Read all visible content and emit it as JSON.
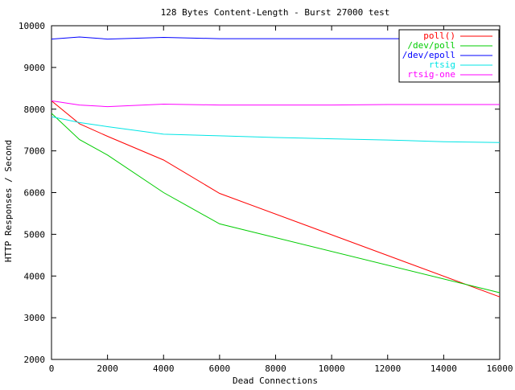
{
  "chart_data": {
    "type": "line",
    "title": "128 Bytes Content-Length - Burst 27000 test",
    "xlabel": "Dead Connections",
    "ylabel": "HTTP Responses / Second",
    "xlim": [
      0,
      16000
    ],
    "ylim": [
      2000,
      10000
    ],
    "x_ticks": [
      0,
      2000,
      4000,
      6000,
      8000,
      10000,
      12000,
      14000,
      16000
    ],
    "y_ticks": [
      2000,
      3000,
      4000,
      5000,
      6000,
      7000,
      8000,
      9000,
      10000
    ],
    "grid": false,
    "legend_position": "top-right",
    "series": [
      {
        "name": "poll()",
        "color": "#ff0000",
        "points": [
          [
            0,
            8200
          ],
          [
            1000,
            7650
          ],
          [
            2000,
            7350
          ],
          [
            4000,
            6780
          ],
          [
            6000,
            5980
          ],
          [
            16000,
            3500
          ]
        ]
      },
      {
        "name": "/dev/poll",
        "color": "#00cc00",
        "points": [
          [
            0,
            7900
          ],
          [
            1000,
            7270
          ],
          [
            2000,
            6900
          ],
          [
            4000,
            6000
          ],
          [
            6000,
            5250
          ],
          [
            16000,
            3600
          ]
        ]
      },
      {
        "name": "/dev/epoll",
        "color": "#0000ff",
        "points": [
          [
            0,
            9680
          ],
          [
            1000,
            9730
          ],
          [
            2000,
            9680
          ],
          [
            4000,
            9720
          ],
          [
            6000,
            9690
          ],
          [
            8000,
            9690
          ],
          [
            10000,
            9690
          ],
          [
            12000,
            9690
          ],
          [
            14000,
            9690
          ],
          [
            16000,
            9690
          ]
        ]
      },
      {
        "name": "rtsig",
        "color": "#00e5e5",
        "points": [
          [
            0,
            7820
          ],
          [
            1000,
            7680
          ],
          [
            2000,
            7580
          ],
          [
            4000,
            7400
          ],
          [
            6000,
            7360
          ],
          [
            8000,
            7320
          ],
          [
            10000,
            7290
          ],
          [
            12000,
            7260
          ],
          [
            14000,
            7220
          ],
          [
            16000,
            7200
          ]
        ]
      },
      {
        "name": "rtsig-one",
        "color": "#ff00ff",
        "points": [
          [
            0,
            8200
          ],
          [
            1000,
            8100
          ],
          [
            2000,
            8060
          ],
          [
            4000,
            8120
          ],
          [
            6000,
            8100
          ],
          [
            8000,
            8100
          ],
          [
            10000,
            8100
          ],
          [
            12000,
            8110
          ],
          [
            14000,
            8110
          ],
          [
            16000,
            8110
          ]
        ]
      }
    ]
  }
}
